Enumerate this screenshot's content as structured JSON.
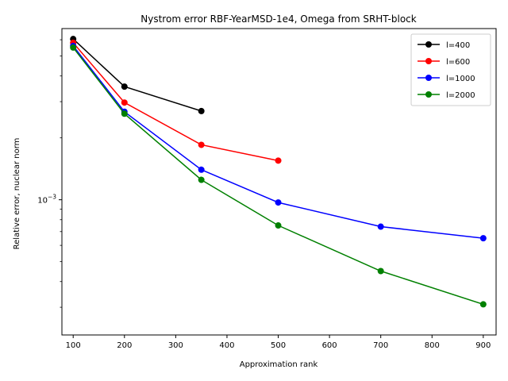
{
  "chart_data": {
    "type": "line",
    "title": "Nystrom error RBF-YearMSD-1e4, Omega from SRHT-block",
    "xlabel": "Approximation rank",
    "ylabel": "Relative error, nuclear norm",
    "xlim": [
      78,
      925
    ],
    "ylim": [
      0.00022,
      0.0068
    ],
    "yscale": "log",
    "xticks": [
      100,
      200,
      300,
      400,
      500,
      600,
      700,
      800,
      900
    ],
    "xtick_labels": [
      "100",
      "200",
      "300",
      "400",
      "500",
      "600",
      "700",
      "800",
      "900"
    ],
    "ytick_major": [
      {
        "value": 0.001,
        "base": "10",
        "exp": "−3"
      }
    ],
    "ytick_minor": [
      0.0003,
      0.0004,
      0.0005,
      0.0006,
      0.0007,
      0.0008,
      0.0009,
      0.002,
      0.003,
      0.004,
      0.005,
      0.006
    ],
    "grid": false,
    "legend_position": "top-right",
    "series": [
      {
        "name": "l=400",
        "color": "#000000",
        "x": [
          100,
          200,
          350
        ],
        "y": [
          0.00605,
          0.00355,
          0.0027
        ]
      },
      {
        "name": "l=600",
        "color": "#ff0000",
        "x": [
          100,
          200,
          350,
          500
        ],
        "y": [
          0.0058,
          0.00297,
          0.00185,
          0.00155
        ]
      },
      {
        "name": "l=1000",
        "color": "#0000ff",
        "x": [
          100,
          200,
          350,
          500,
          700,
          900
        ],
        "y": [
          0.0056,
          0.00268,
          0.0014,
          0.00097,
          0.00074,
          0.00065
        ]
      },
      {
        "name": "l=2000",
        "color": "#008000",
        "x": [
          100,
          200,
          350,
          500,
          700,
          900
        ],
        "y": [
          0.0055,
          0.00262,
          0.00125,
          0.00075,
          0.00045,
          0.00031
        ]
      }
    ]
  }
}
